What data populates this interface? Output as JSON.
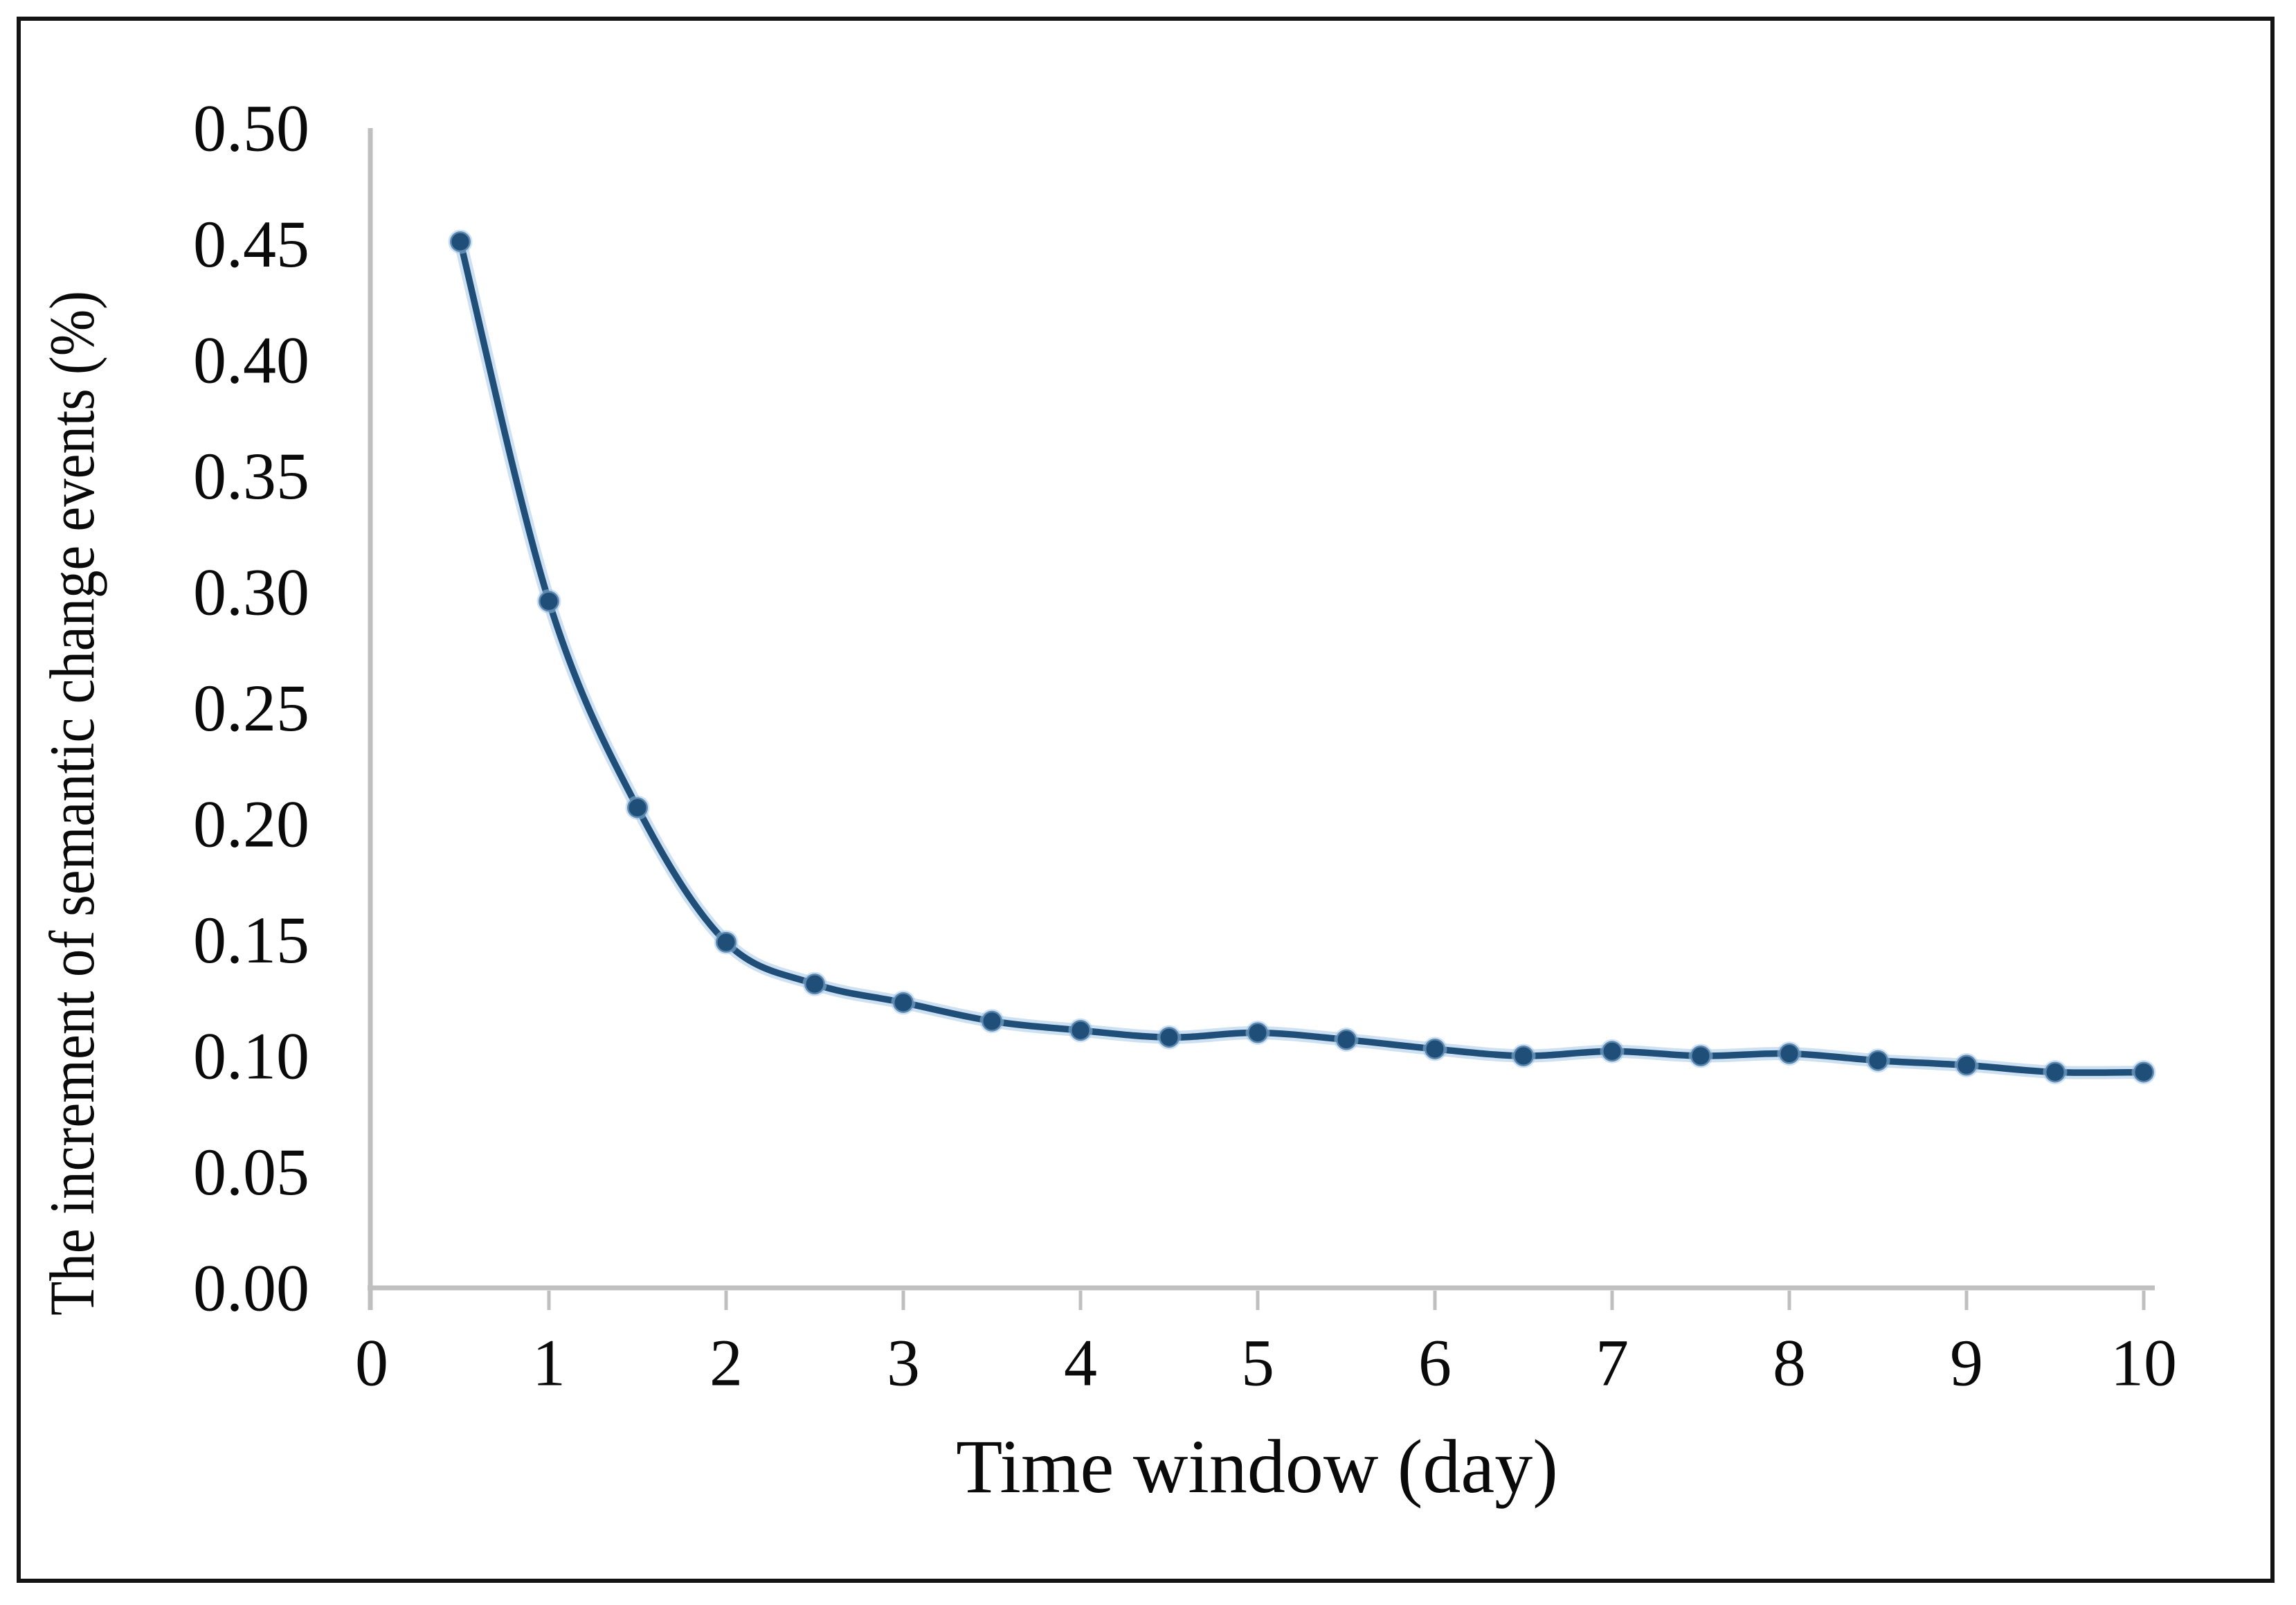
{
  "figure": {
    "background_color": "#FFFFFF",
    "border_color": "#141414"
  },
  "chart_data": {
    "type": "line",
    "title": "",
    "xlabel": "Time window (day)",
    "ylabel": "The increment of semantic change events (%)",
    "x": [
      0.5,
      1.0,
      1.5,
      2.0,
      2.5,
      3.0,
      3.5,
      4.0,
      4.5,
      5.0,
      5.5,
      6.0,
      6.5,
      7.0,
      7.5,
      8.0,
      8.5,
      9.0,
      9.5,
      10.0
    ],
    "series": [
      {
        "name": "increment-of-semantic-change-events",
        "values": [
          0.451,
          0.296,
          0.207,
          0.149,
          0.131,
          0.123,
          0.115,
          0.111,
          0.108,
          0.11,
          0.107,
          0.103,
          0.1,
          0.102,
          0.1,
          0.101,
          0.098,
          0.096,
          0.093,
          0.093
        ]
      }
    ],
    "xlim": [
      0,
      10
    ],
    "ylim": [
      0.0,
      0.5
    ],
    "x_tick_labels": [
      "0",
      "1",
      "2",
      "3",
      "4",
      "5",
      "6",
      "7",
      "8",
      "9",
      "10"
    ],
    "y_tick_labels": [
      "0.00",
      "0.05",
      "0.10",
      "0.15",
      "0.20",
      "0.25",
      "0.30",
      "0.35",
      "0.40",
      "0.45",
      "0.50"
    ],
    "grid": false,
    "legend_position": "none",
    "smooth": true,
    "marker": "circle",
    "line_color": "#1F4E79",
    "marker_color": "#1F4E79",
    "halo_color": "#9DC3E6",
    "axis_color": "#BFBFBF",
    "text_color": "#0a0a0a"
  }
}
